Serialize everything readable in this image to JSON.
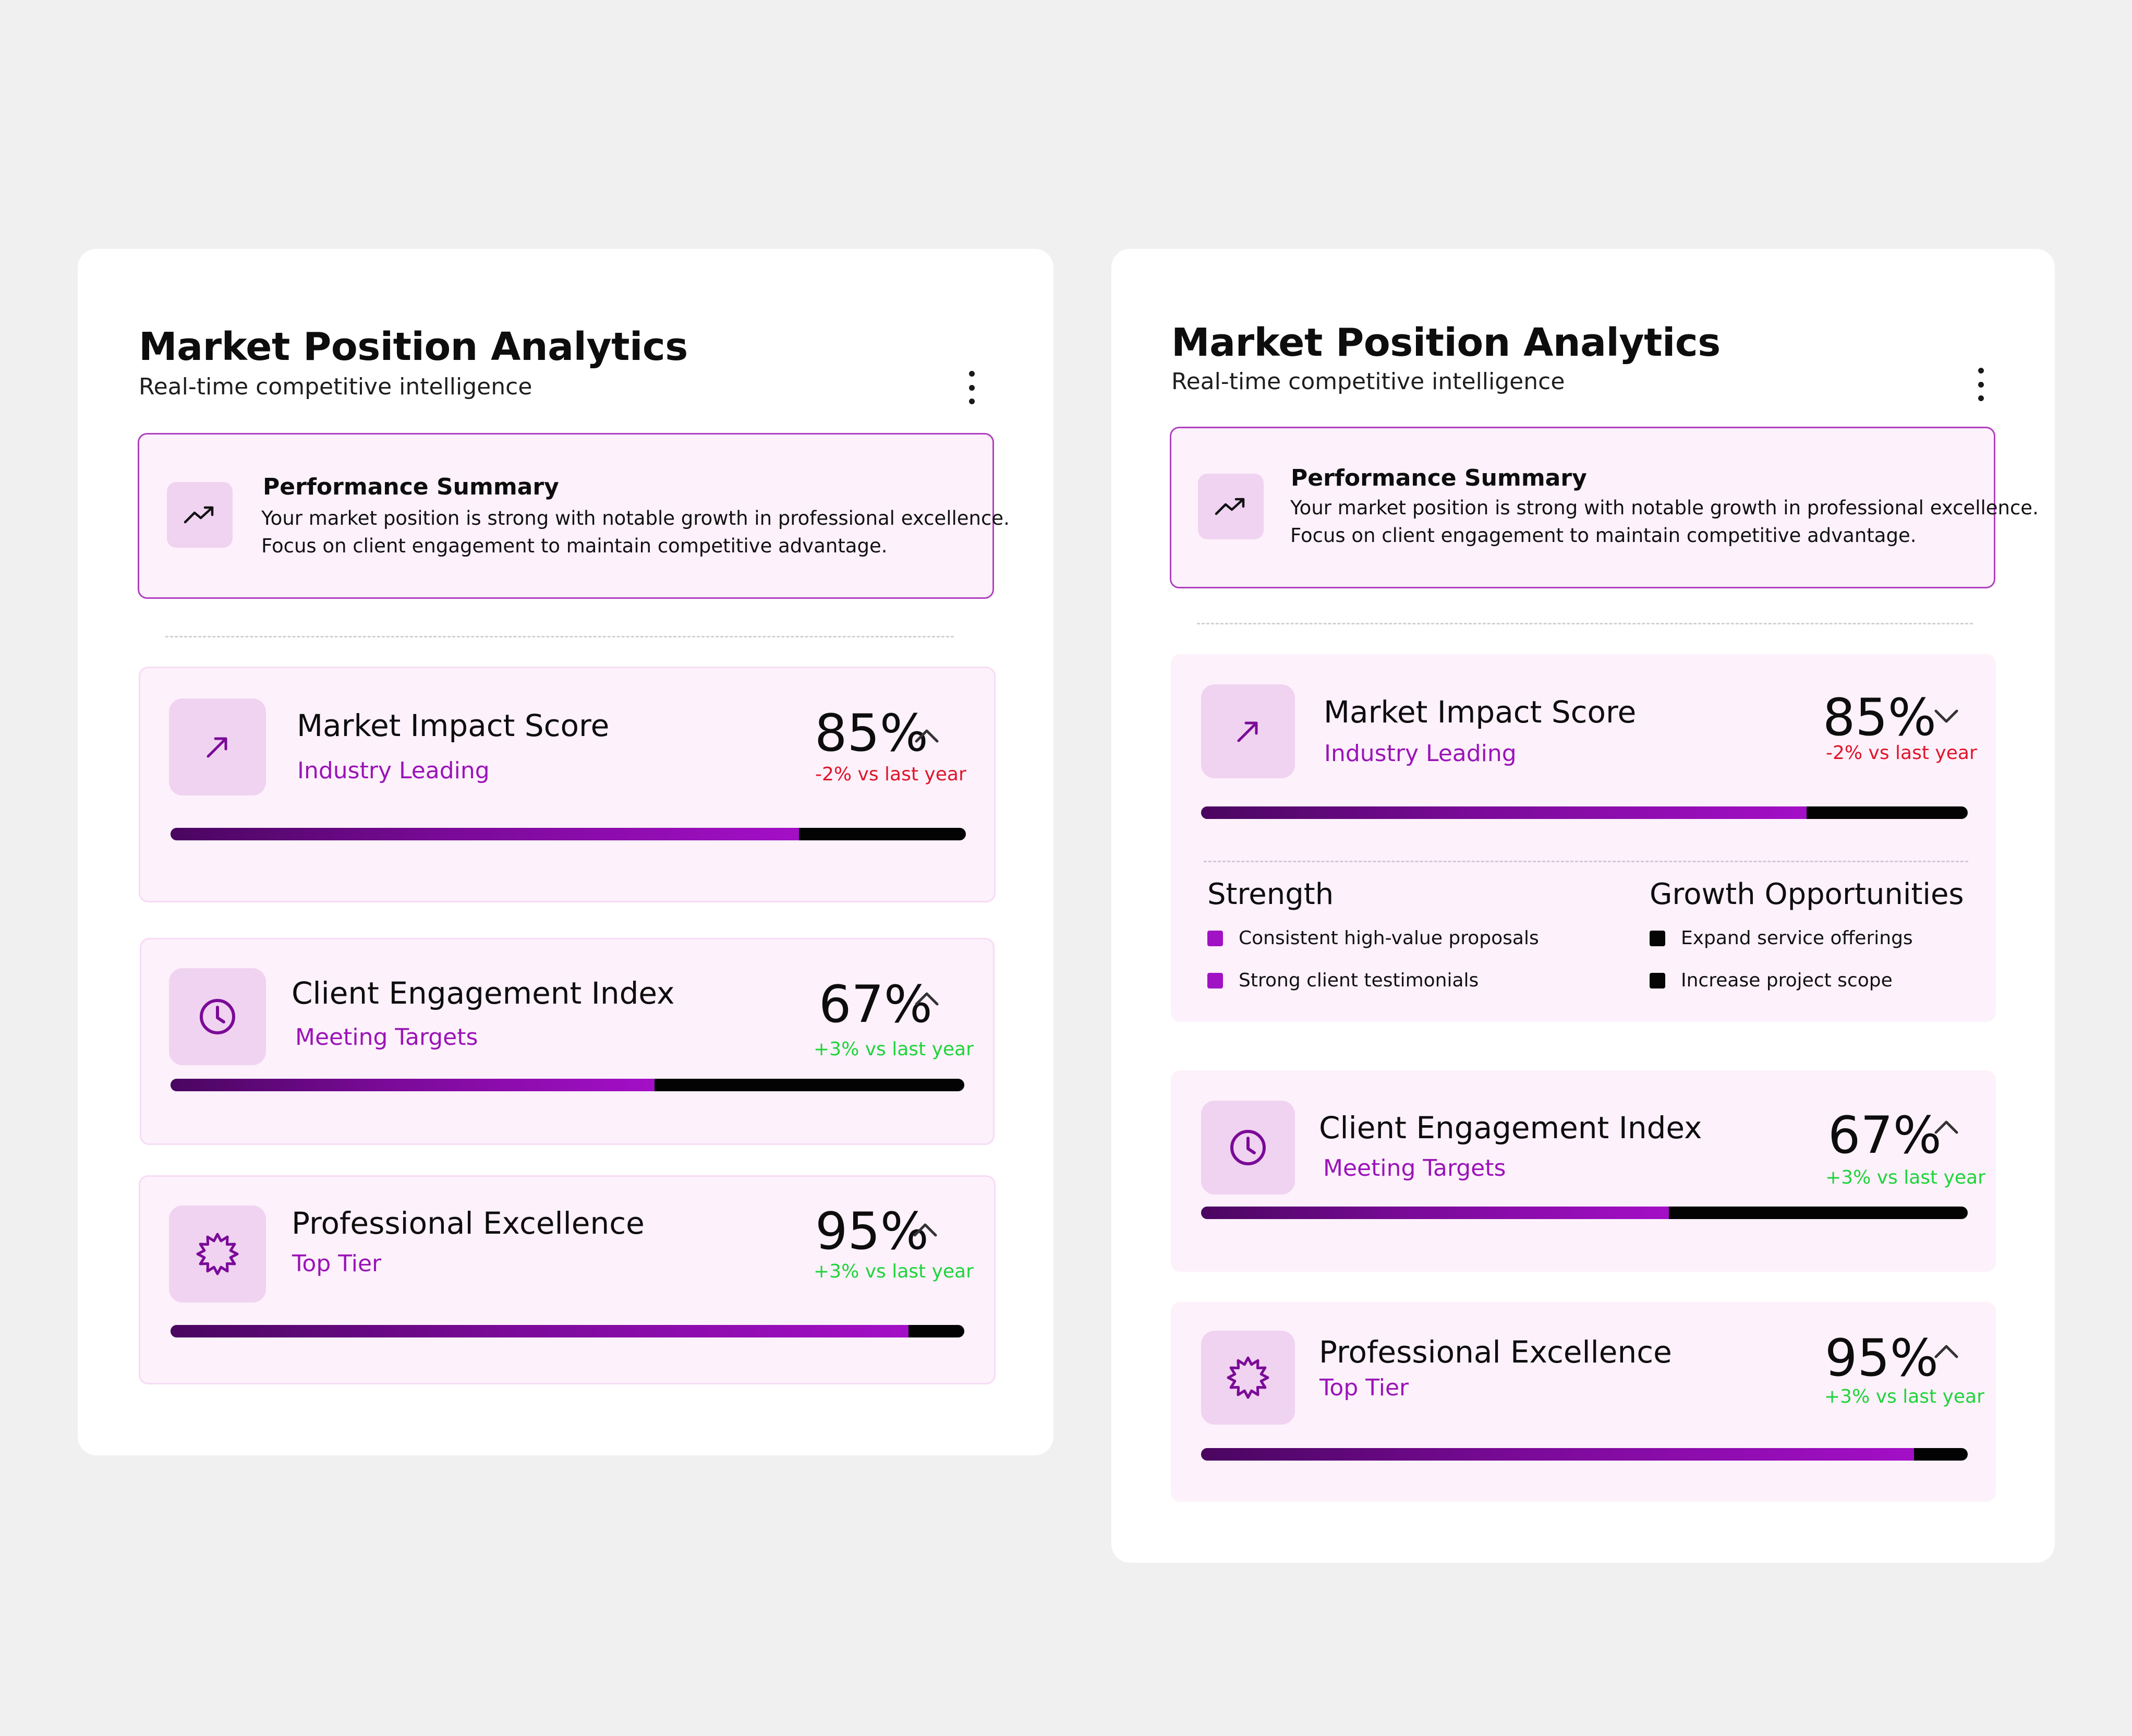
{
  "colors": {
    "page_bg": "#f0f0f0",
    "card_bg": "#ffffff",
    "panel_bg": "#fdf1fb",
    "icon_tile_bg": "#f0d3f0",
    "accent_purple": "#9a14b8",
    "negative_red": "#e0142a",
    "positive_green": "#1ed43a"
  },
  "header": {
    "title": "Market Position Analytics",
    "subtitle": "Real-time competitive intelligence",
    "menu_icon": "kebab-menu-icon"
  },
  "summary": {
    "icon": "trending-up-icon",
    "title": "Performance Summary",
    "line1": "Your market position is strong with notable growth in professional excellence.",
    "line2": "Focus on client engagement to maintain competitive advantage."
  },
  "metrics": [
    {
      "icon": "arrow-up-right-icon",
      "name": "Market Impact Score",
      "tag": "Industry Leading",
      "value": "85%",
      "progress": 0.79,
      "delta": "-2% vs last year",
      "trend": "negative"
    },
    {
      "icon": "clock-icon",
      "name": "Client Engagement Index",
      "tag": "Meeting Targets",
      "value": "67%",
      "progress": 0.61,
      "delta": "+3% vs last year",
      "trend": "positive"
    },
    {
      "icon": "badge-star-icon",
      "name": "Professional Excellence",
      "tag": "Top Tier",
      "value": "95%",
      "progress": 0.93,
      "delta": "+3% vs last year",
      "trend": "positive"
    }
  ],
  "details": {
    "strength_heading": "Strength",
    "strengths": [
      "Consistent high-value proposals",
      "Strong client testimonials"
    ],
    "growth_heading": "Growth Opportunities",
    "growth": [
      "Expand service offerings",
      "Increase project scope"
    ]
  },
  "expanded_state": {
    "left_card_expanded": false,
    "right_card_market_impact_expanded": true
  }
}
